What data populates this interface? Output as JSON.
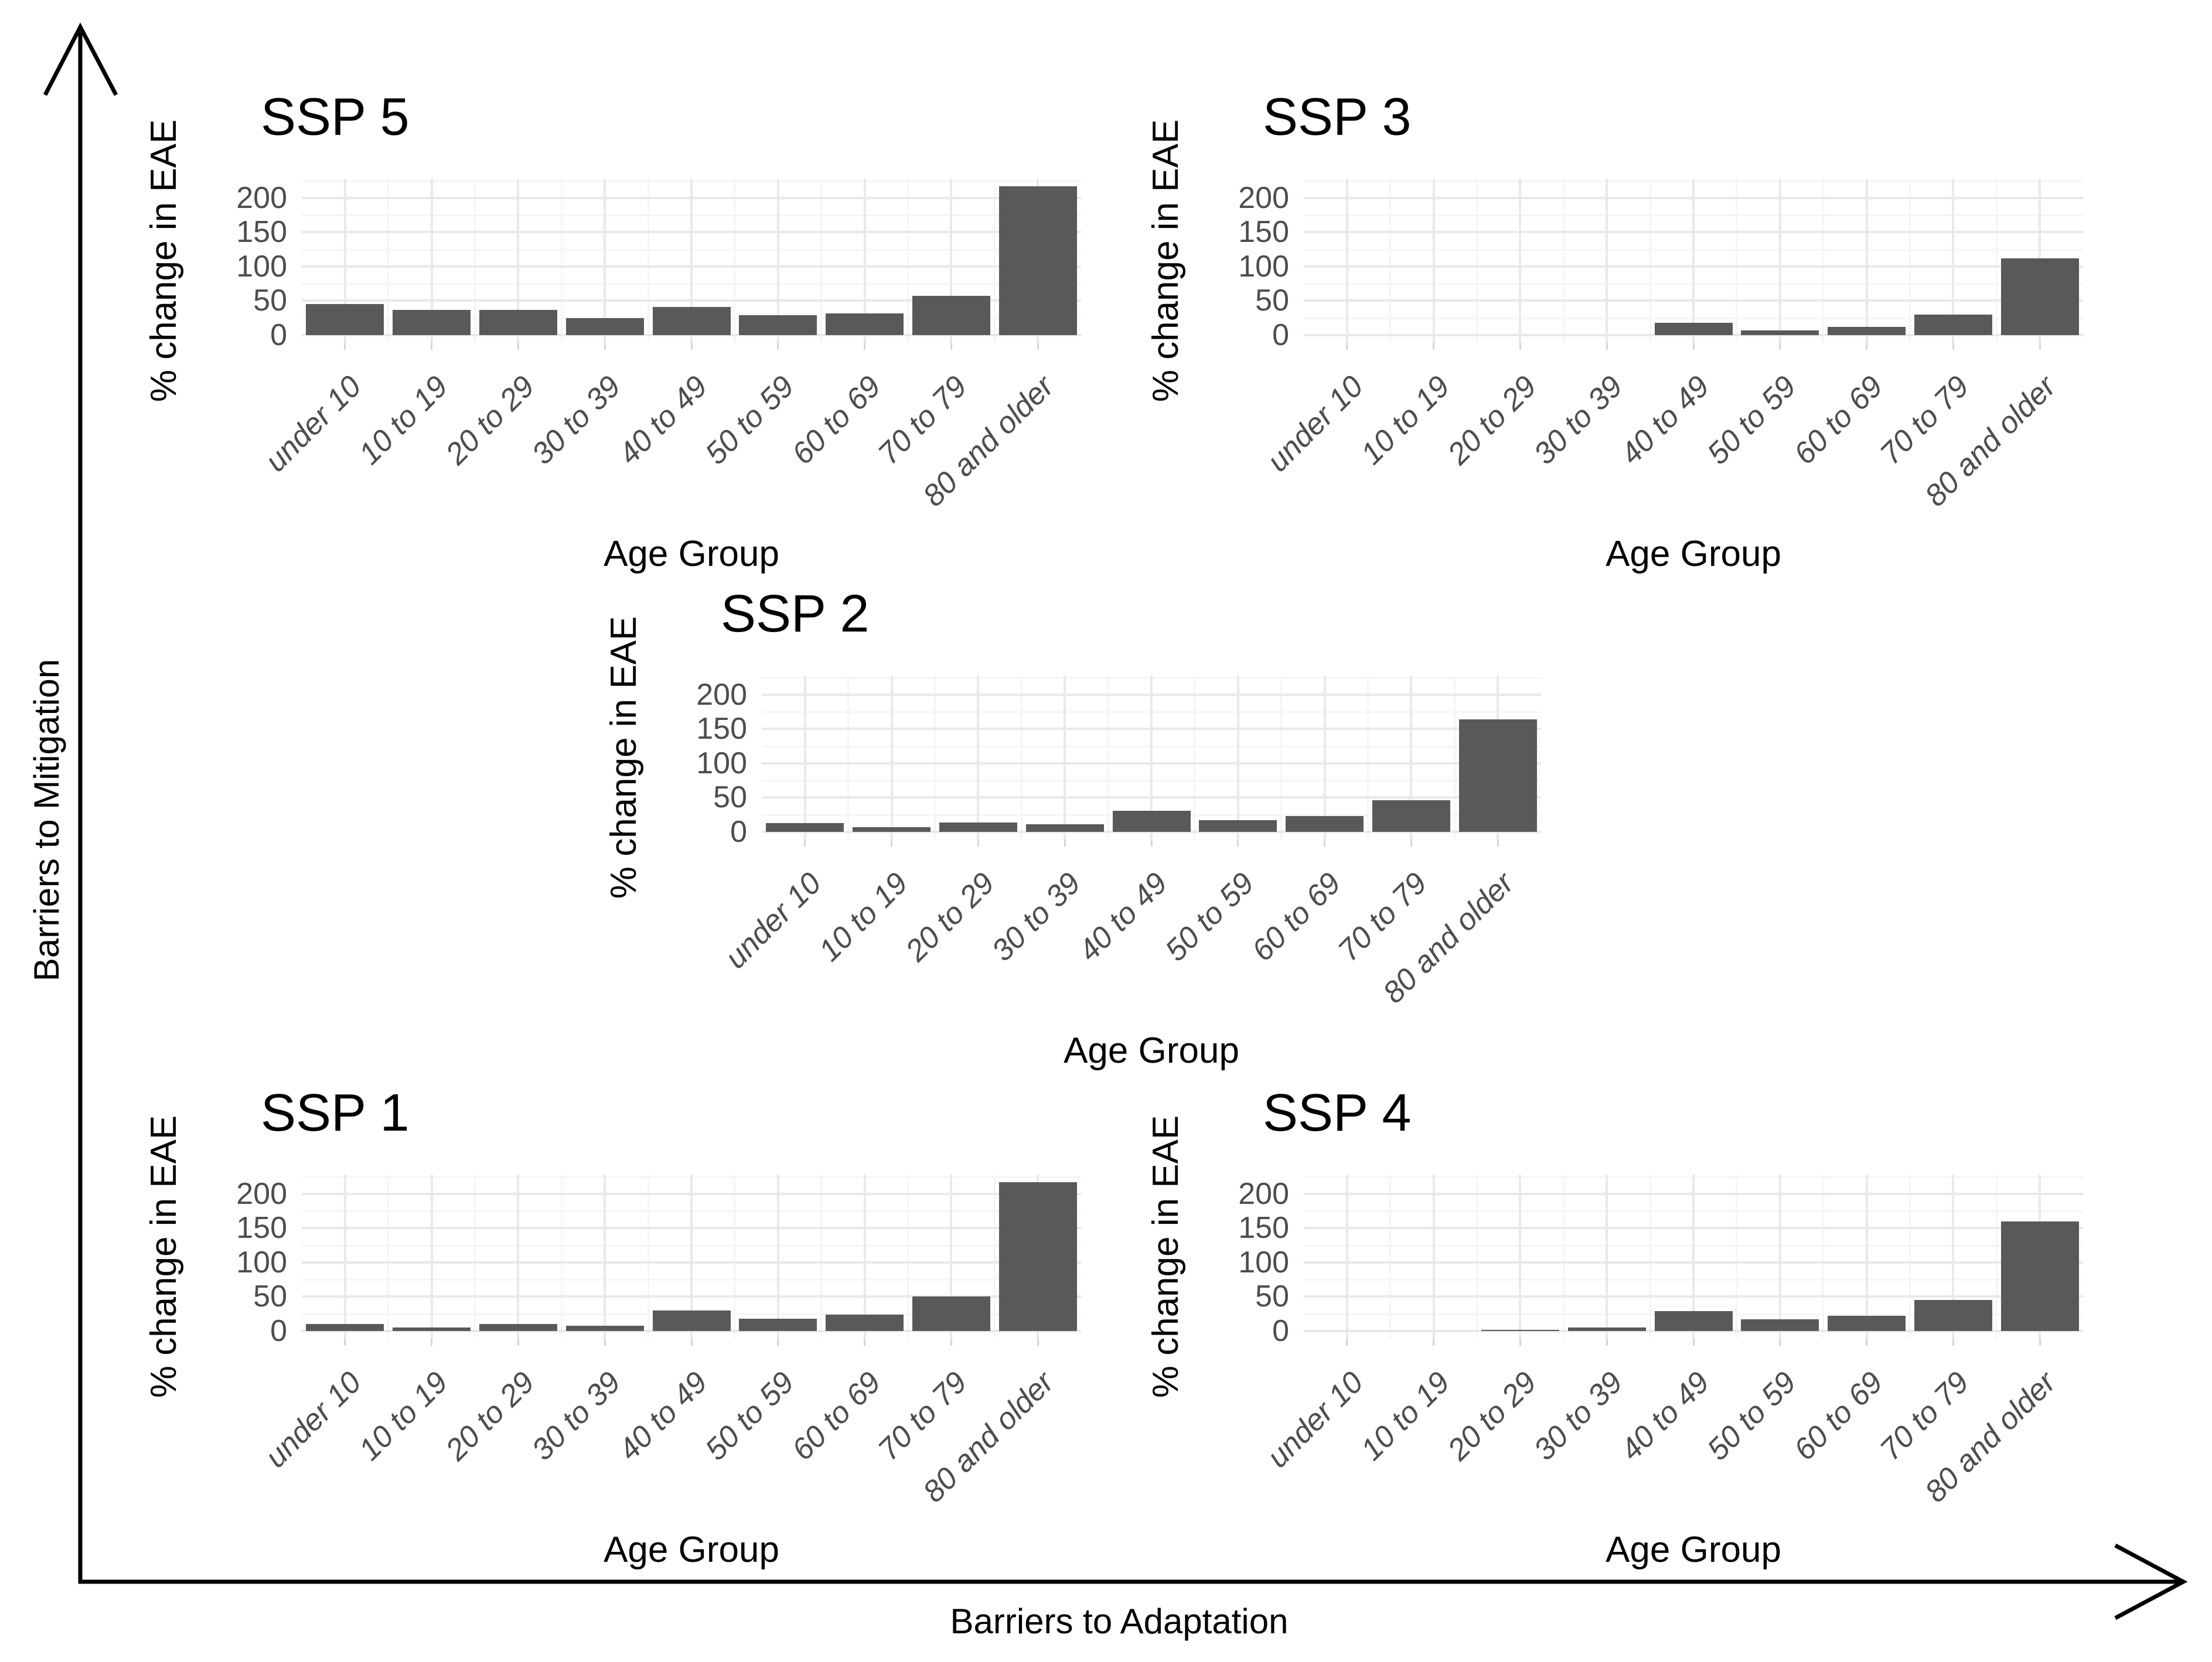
{
  "figure": {
    "x_axis_label": "Barriers to Adaptation",
    "y_axis_label": "Barriers to Mitigation"
  },
  "colors": {
    "bar": "#595959",
    "grid_major": "#e9e9e9",
    "grid_minor": "#f5f5f5",
    "tick_text": "#4d4d4d",
    "axis_text": "#000000",
    "tick_mark": "#d5d5d5",
    "arrow": "#000000",
    "background": "#ffffff"
  },
  "chart_data": [
    {
      "id": "ssp5",
      "type": "bar",
      "title": "SSP 5",
      "xlabel": "Age Group",
      "ylabel": "% change in EAE",
      "categories": [
        "under 10",
        "10 to 19",
        "20 to 29",
        "30 to 39",
        "40 to 49",
        "50 to 59",
        "60 to 69",
        "70 to 79",
        "80 and older"
      ],
      "values": [
        45,
        37,
        37,
        25,
        41,
        29,
        32,
        57,
        217
      ],
      "yticks": [
        0,
        50,
        100,
        150,
        200
      ],
      "ylim": [
        0,
        228
      ],
      "grid": true,
      "legend": "none",
      "position": "top-left"
    },
    {
      "id": "ssp3",
      "type": "bar",
      "title": "SSP 3",
      "xlabel": "Age Group",
      "ylabel": "% change in EAE",
      "categories": [
        "under 10",
        "10 to 19",
        "20 to 29",
        "30 to 39",
        "40 to 49",
        "50 to 59",
        "60 to 69",
        "70 to 79",
        "80 and older"
      ],
      "values": [
        0,
        0,
        0,
        0,
        18,
        7,
        12,
        30,
        112
      ],
      "yticks": [
        0,
        50,
        100,
        150,
        200
      ],
      "ylim": [
        0,
        228
      ],
      "grid": true,
      "legend": "none",
      "position": "top-right"
    },
    {
      "id": "ssp2",
      "type": "bar",
      "title": "SSP 2",
      "xlabel": "Age Group",
      "ylabel": "% change in EAE",
      "categories": [
        "under 10",
        "10 to 19",
        "20 to 29",
        "30 to 39",
        "40 to 49",
        "50 to 59",
        "60 to 69",
        "70 to 79",
        "80 and older"
      ],
      "values": [
        13,
        7,
        14,
        11,
        31,
        17,
        23,
        46,
        164
      ],
      "yticks": [
        0,
        50,
        100,
        150,
        200
      ],
      "ylim": [
        0,
        228
      ],
      "grid": true,
      "legend": "none",
      "position": "middle-center"
    },
    {
      "id": "ssp1",
      "type": "bar",
      "title": "SSP 1",
      "xlabel": "Age Group",
      "ylabel": "% change in EAE",
      "categories": [
        "under 10",
        "10 to 19",
        "20 to 29",
        "30 to 39",
        "40 to 49",
        "50 to 59",
        "60 to 69",
        "70 to 79",
        "80 and older"
      ],
      "values": [
        10,
        5,
        10,
        8,
        30,
        18,
        24,
        50,
        217
      ],
      "yticks": [
        0,
        50,
        100,
        150,
        200
      ],
      "ylim": [
        0,
        228
      ],
      "grid": true,
      "legend": "none",
      "position": "bottom-left"
    },
    {
      "id": "ssp4",
      "type": "bar",
      "title": "SSP 4",
      "xlabel": "Age Group",
      "ylabel": "% change in EAE",
      "categories": [
        "under 10",
        "10 to 19",
        "20 to 29",
        "30 to 39",
        "40 to 49",
        "50 to 59",
        "60 to 69",
        "70 to 79",
        "80 and older"
      ],
      "values": [
        0,
        0,
        2,
        5,
        29,
        17,
        22,
        45,
        160
      ],
      "yticks": [
        0,
        50,
        100,
        150,
        200
      ],
      "ylim": [
        0,
        228
      ],
      "grid": true,
      "legend": "none",
      "position": "bottom-right"
    }
  ]
}
